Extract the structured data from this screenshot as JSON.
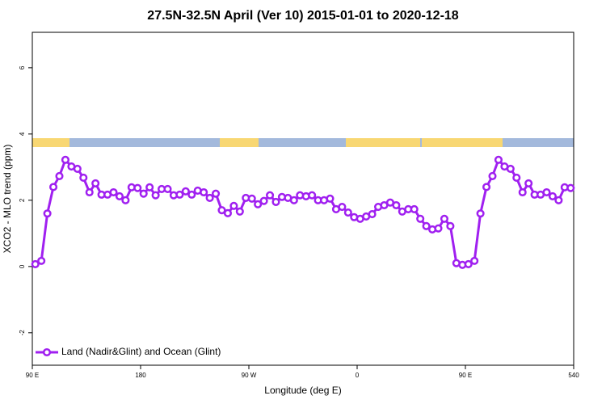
{
  "chart_data": {
    "type": "line",
    "title": "27.5N-32.5N April (Ver 10)   2015-01-01 to 2020-12-18",
    "x_label": "Longitude (deg E)",
    "y_label": "XCO2 - MLO trend (ppm)",
    "x": [
      92.5,
      97.5,
      102.5,
      107.5,
      112.5,
      117.5,
      122.5,
      127.5,
      132.5,
      137.5,
      142.5,
      147.5,
      152.5,
      157.5,
      162.5,
      167.5,
      172.5,
      177.5,
      182.5,
      187.5,
      192.5,
      197.5,
      202.5,
      207.5,
      212.5,
      217.5,
      222.5,
      227.5,
      232.5,
      237.5,
      242.5,
      247.5,
      252.5,
      257.5,
      262.5,
      267.5,
      272.5,
      277.5,
      282.5,
      287.5,
      292.5,
      297.5,
      302.5,
      307.5,
      312.5,
      317.5,
      322.5,
      327.5,
      332.5,
      337.5,
      342.5,
      347.5,
      352.5,
      357.5,
      362.5,
      367.5,
      372.5,
      377.5,
      382.5,
      387.5,
      392.5,
      397.5,
      402.5,
      407.5,
      412.5,
      417.5,
      422.5,
      427.5,
      432.5,
      437.5,
      442.5,
      447.5,
      452.5,
      457.5,
      462.5,
      467.5,
      472.5,
      477.5,
      482.5,
      487.5,
      492.5,
      497.5,
      502.5,
      507.5,
      512.5,
      517.5,
      522.5,
      527.5,
      532.5,
      537.5
    ],
    "series": [
      {
        "name": "Land (Nadir&Glint) and Ocean (Glint)",
        "color": "#a020f0",
        "values": [
          0.07,
          0.17,
          1.6,
          2.4,
          2.73,
          3.22,
          3.02,
          2.95,
          2.68,
          2.24,
          2.51,
          2.17,
          2.17,
          2.24,
          2.12,
          2.0,
          2.39,
          2.37,
          2.2,
          2.39,
          2.15,
          2.34,
          2.34,
          2.15,
          2.17,
          2.27,
          2.17,
          2.29,
          2.24,
          2.07,
          2.2,
          1.7,
          1.61,
          1.83,
          1.66,
          2.07,
          2.05,
          1.88,
          1.98,
          2.15,
          1.95,
          2.1,
          2.07,
          2.0,
          2.15,
          2.12,
          2.15,
          2.0,
          2.0,
          2.05,
          1.73,
          1.8,
          1.63,
          1.49,
          1.44,
          1.51,
          1.58,
          1.8,
          1.85,
          1.93,
          1.85,
          1.66,
          1.73,
          1.73,
          1.44,
          1.22,
          1.12,
          1.15,
          1.44,
          1.22,
          0.1,
          0.05,
          0.07,
          0.17,
          1.6,
          2.4,
          2.73,
          3.22,
          3.02,
          2.95,
          2.68,
          2.24,
          2.51,
          2.17,
          2.17,
          2.24,
          2.12,
          2.0,
          2.39,
          2.37
        ]
      }
    ],
    "xlim": [
      90,
      540
    ],
    "xticks": [
      {
        "value": 90,
        "label": "90 E"
      },
      180,
      {
        "value": 270,
        "label": "90 W"
      },
      {
        "value": 360,
        "label": "0"
      },
      {
        "value": 450,
        "label": "90 E"
      },
      540
    ],
    "ylim": [
      -2.98,
      7.07
    ],
    "yticks": [
      -2,
      0,
      2,
      4,
      6
    ],
    "legend": "bottom-left",
    "grid": false
  }
}
